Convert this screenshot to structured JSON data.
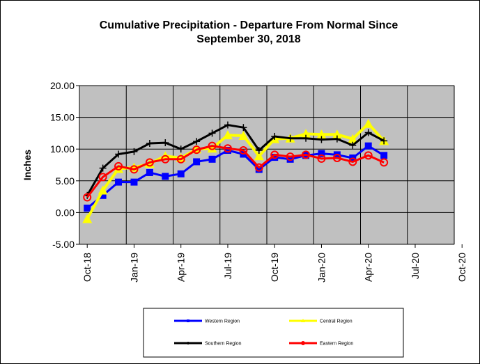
{
  "chart_data": {
    "type": "line",
    "title_line1": "Cumulative Precipitation - Departure From Normal Since",
    "title_line2": "September 30, 2018",
    "ylabel": "Inches",
    "ylim": [
      -5,
      20
    ],
    "yticks": [
      "-5.00",
      "0.00",
      "5.00",
      "10.00",
      "15.00",
      "20.00"
    ],
    "xticks": [
      "Oct-18",
      "Jan-19",
      "Apr-19",
      "Jul-19",
      "Oct-19",
      "Jan-20",
      "Apr-20",
      "Jul-20",
      "Oct-20"
    ],
    "grid": true,
    "plot_background": "#c0c0c0",
    "legend_position": "bottom",
    "months": 24,
    "series": [
      {
        "name": "Western Region",
        "color": "#0000ff",
        "marker": "square",
        "values": [
          0.7,
          2.7,
          4.8,
          4.8,
          6.3,
          5.7,
          6.1,
          8.0,
          8.4,
          9.8,
          9.2,
          6.8,
          8.7,
          8.4,
          9.0,
          9.3,
          9.1,
          8.6,
          10.5,
          9.0
        ]
      },
      {
        "name": "Central Region",
        "color": "#ffff00",
        "marker": "triangle",
        "values": [
          -1.0,
          3.5,
          6.9,
          7.1,
          7.7,
          8.9,
          8.6,
          10.0,
          10.1,
          12.2,
          12.1,
          8.9,
          11.6,
          11.7,
          12.4,
          12.3,
          12.3,
          11.6,
          14.0,
          11.3
        ]
      },
      {
        "name": "Southern Region",
        "color": "#000000",
        "marker": "plus",
        "values": [
          2.7,
          7.0,
          9.2,
          9.6,
          10.9,
          11.0,
          10.0,
          11.2,
          12.5,
          13.8,
          13.4,
          9.8,
          12.0,
          11.7,
          11.7,
          11.5,
          11.6,
          10.6,
          12.6,
          11.3
        ]
      },
      {
        "name": "Eastern Region",
        "color": "#ff0000",
        "marker": "circle",
        "values": [
          2.4,
          5.6,
          7.3,
          6.8,
          7.9,
          8.4,
          8.4,
          9.9,
          10.5,
          10.1,
          9.8,
          7.1,
          9.1,
          8.8,
          9.1,
          8.5,
          8.6,
          8.0,
          9.0,
          7.9
        ]
      }
    ]
  }
}
